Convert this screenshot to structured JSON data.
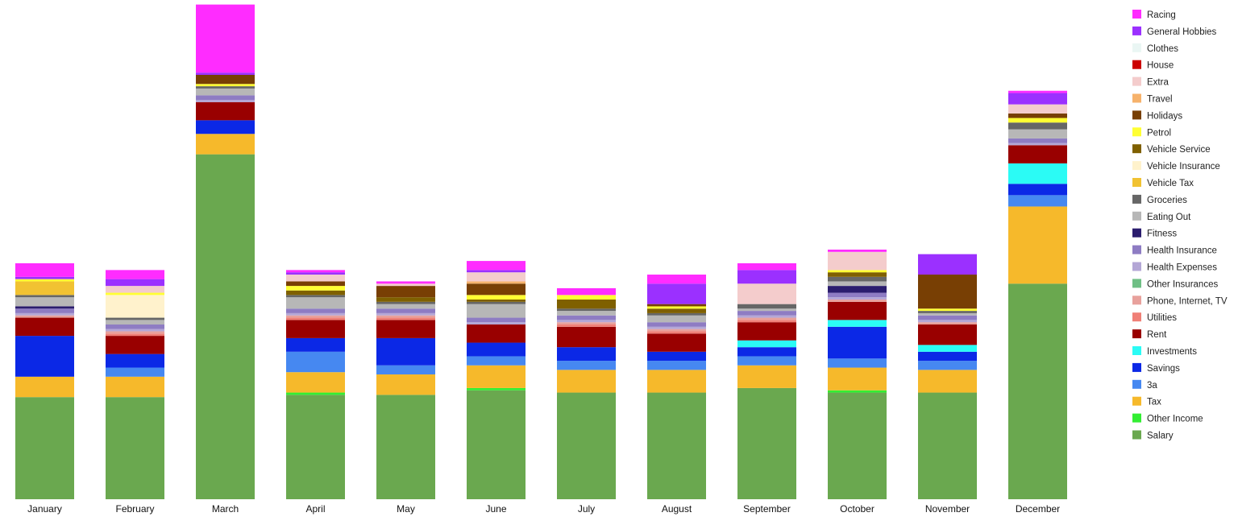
{
  "chart_data": {
    "type": "bar",
    "stacked": true,
    "legend_position": "right",
    "grid": false,
    "categories": [
      "January",
      "February",
      "March",
      "April",
      "May",
      "June",
      "July",
      "August",
      "September",
      "October",
      "November",
      "December"
    ],
    "ylim": [
      0,
      220
    ],
    "series": [
      {
        "name": "Salary",
        "color": "#6aa84f",
        "values": [
          45,
          45,
          152,
          46,
          46,
          48,
          47,
          47,
          49,
          47,
          47,
          95
        ]
      },
      {
        "name": "Other Income",
        "color": "#33ee33",
        "values": [
          0,
          0,
          0,
          1,
          0,
          1,
          0,
          0,
          0,
          1,
          0,
          0
        ]
      },
      {
        "name": "Tax",
        "color": "#f6b92b",
        "values": [
          9,
          9,
          9,
          9,
          9,
          10,
          10,
          10,
          10,
          10,
          10,
          34
        ]
      },
      {
        "name": "3a",
        "color": "#4688f1",
        "values": [
          0,
          4,
          0,
          9,
          4,
          4,
          4,
          4,
          4,
          4,
          4,
          5
        ]
      },
      {
        "name": "Savings",
        "color": "#0b28e6",
        "values": [
          18,
          6,
          6,
          6,
          12,
          6,
          6,
          4,
          4,
          14,
          4,
          5
        ]
      },
      {
        "name": "Investments",
        "color": "#2bfbf5",
        "values": [
          0,
          0,
          0,
          0,
          0,
          0,
          0,
          0,
          3,
          3,
          3,
          9
        ]
      },
      {
        "name": "Rent",
        "color": "#990000",
        "values": [
          8,
          8,
          8,
          8,
          8,
          8,
          9,
          8,
          8,
          8,
          9,
          8
        ]
      },
      {
        "name": "Utilities",
        "color": "#f08077",
        "values": [
          0,
          1,
          0,
          1,
          1,
          0,
          1,
          1,
          1,
          0,
          0,
          0
        ]
      },
      {
        "name": "Phone, Internet, TV",
        "color": "#e8a19c",
        "values": [
          1,
          1,
          0,
          1,
          1,
          0,
          1,
          1,
          1,
          1,
          1,
          0
        ]
      },
      {
        "name": "Other Insurances",
        "color": "#6fbf85",
        "values": [
          0,
          0,
          0,
          0,
          0,
          0,
          0,
          0,
          0,
          0,
          0,
          0
        ]
      },
      {
        "name": "Health Expenses",
        "color": "#b4a7d6",
        "values": [
          1,
          1,
          1,
          1,
          1,
          1,
          1,
          1,
          1,
          1,
          1,
          1
        ]
      },
      {
        "name": "Health Insurance",
        "color": "#8e7cc3",
        "values": [
          2,
          2,
          2,
          2,
          2,
          2,
          2,
          2,
          2,
          2,
          2,
          2
        ]
      },
      {
        "name": "Fitness",
        "color": "#2b1d6e",
        "values": [
          1,
          0,
          0,
          0,
          0,
          0,
          0,
          0,
          0,
          3,
          0,
          0
        ]
      },
      {
        "name": "Eating Out",
        "color": "#b7b7b7",
        "values": [
          4,
          2,
          3,
          5,
          2,
          6,
          2,
          3,
          1,
          2,
          1,
          4
        ]
      },
      {
        "name": "Groceries",
        "color": "#666666",
        "values": [
          1,
          1,
          1,
          1,
          1,
          1,
          1,
          1,
          2,
          2,
          1,
          3
        ]
      },
      {
        "name": "Vehicle Tax",
        "color": "#f1c232",
        "values": [
          6,
          0,
          0,
          0,
          0,
          0,
          0,
          0,
          0,
          0,
          0,
          0
        ]
      },
      {
        "name": "Vehicle Insurance",
        "color": "#fff2cc",
        "values": [
          0,
          10,
          0,
          0,
          0,
          0,
          0,
          0,
          0,
          0,
          0,
          0
        ]
      },
      {
        "name": "Vehicle Service",
        "color": "#7f6000",
        "values": [
          0,
          0,
          0,
          2,
          2,
          1,
          4,
          2,
          0,
          2,
          0,
          0
        ]
      },
      {
        "name": "Petrol",
        "color": "#ffff33",
        "values": [
          1,
          1,
          1,
          2,
          0,
          2,
          2,
          1,
          0,
          1,
          1,
          2
        ]
      },
      {
        "name": "Holidays",
        "color": "#783f04",
        "values": [
          0,
          0,
          4,
          2,
          5,
          5,
          0,
          1,
          0,
          0,
          15,
          2
        ]
      },
      {
        "name": "Travel",
        "color": "#f6b26b",
        "values": [
          0,
          0,
          0,
          0,
          0,
          1,
          0,
          0,
          0,
          0,
          0,
          0
        ]
      },
      {
        "name": "Extra",
        "color": "#f4cccc",
        "values": [
          0,
          3,
          0,
          3,
          1,
          4,
          0,
          0,
          9,
          8,
          0,
          4
        ]
      },
      {
        "name": "House",
        "color": "#cc0000",
        "values": [
          0,
          0,
          0,
          0,
          0,
          0,
          0,
          0,
          0,
          0,
          0,
          0
        ]
      },
      {
        "name": "Clothes",
        "color": "#eaf6f4",
        "values": [
          0,
          0,
          0,
          0,
          0,
          0,
          0,
          0,
          0,
          0,
          0,
          0
        ]
      },
      {
        "name": "General Hobbies",
        "color": "#9b30ff",
        "values": [
          1,
          3,
          1,
          1,
          0,
          1,
          0,
          9,
          6,
          0,
          9,
          5
        ]
      },
      {
        "name": "Racing",
        "color": "#ff2cff",
        "values": [
          6,
          4,
          30,
          1,
          1,
          4,
          3,
          4,
          3,
          1,
          0,
          1
        ]
      }
    ]
  }
}
